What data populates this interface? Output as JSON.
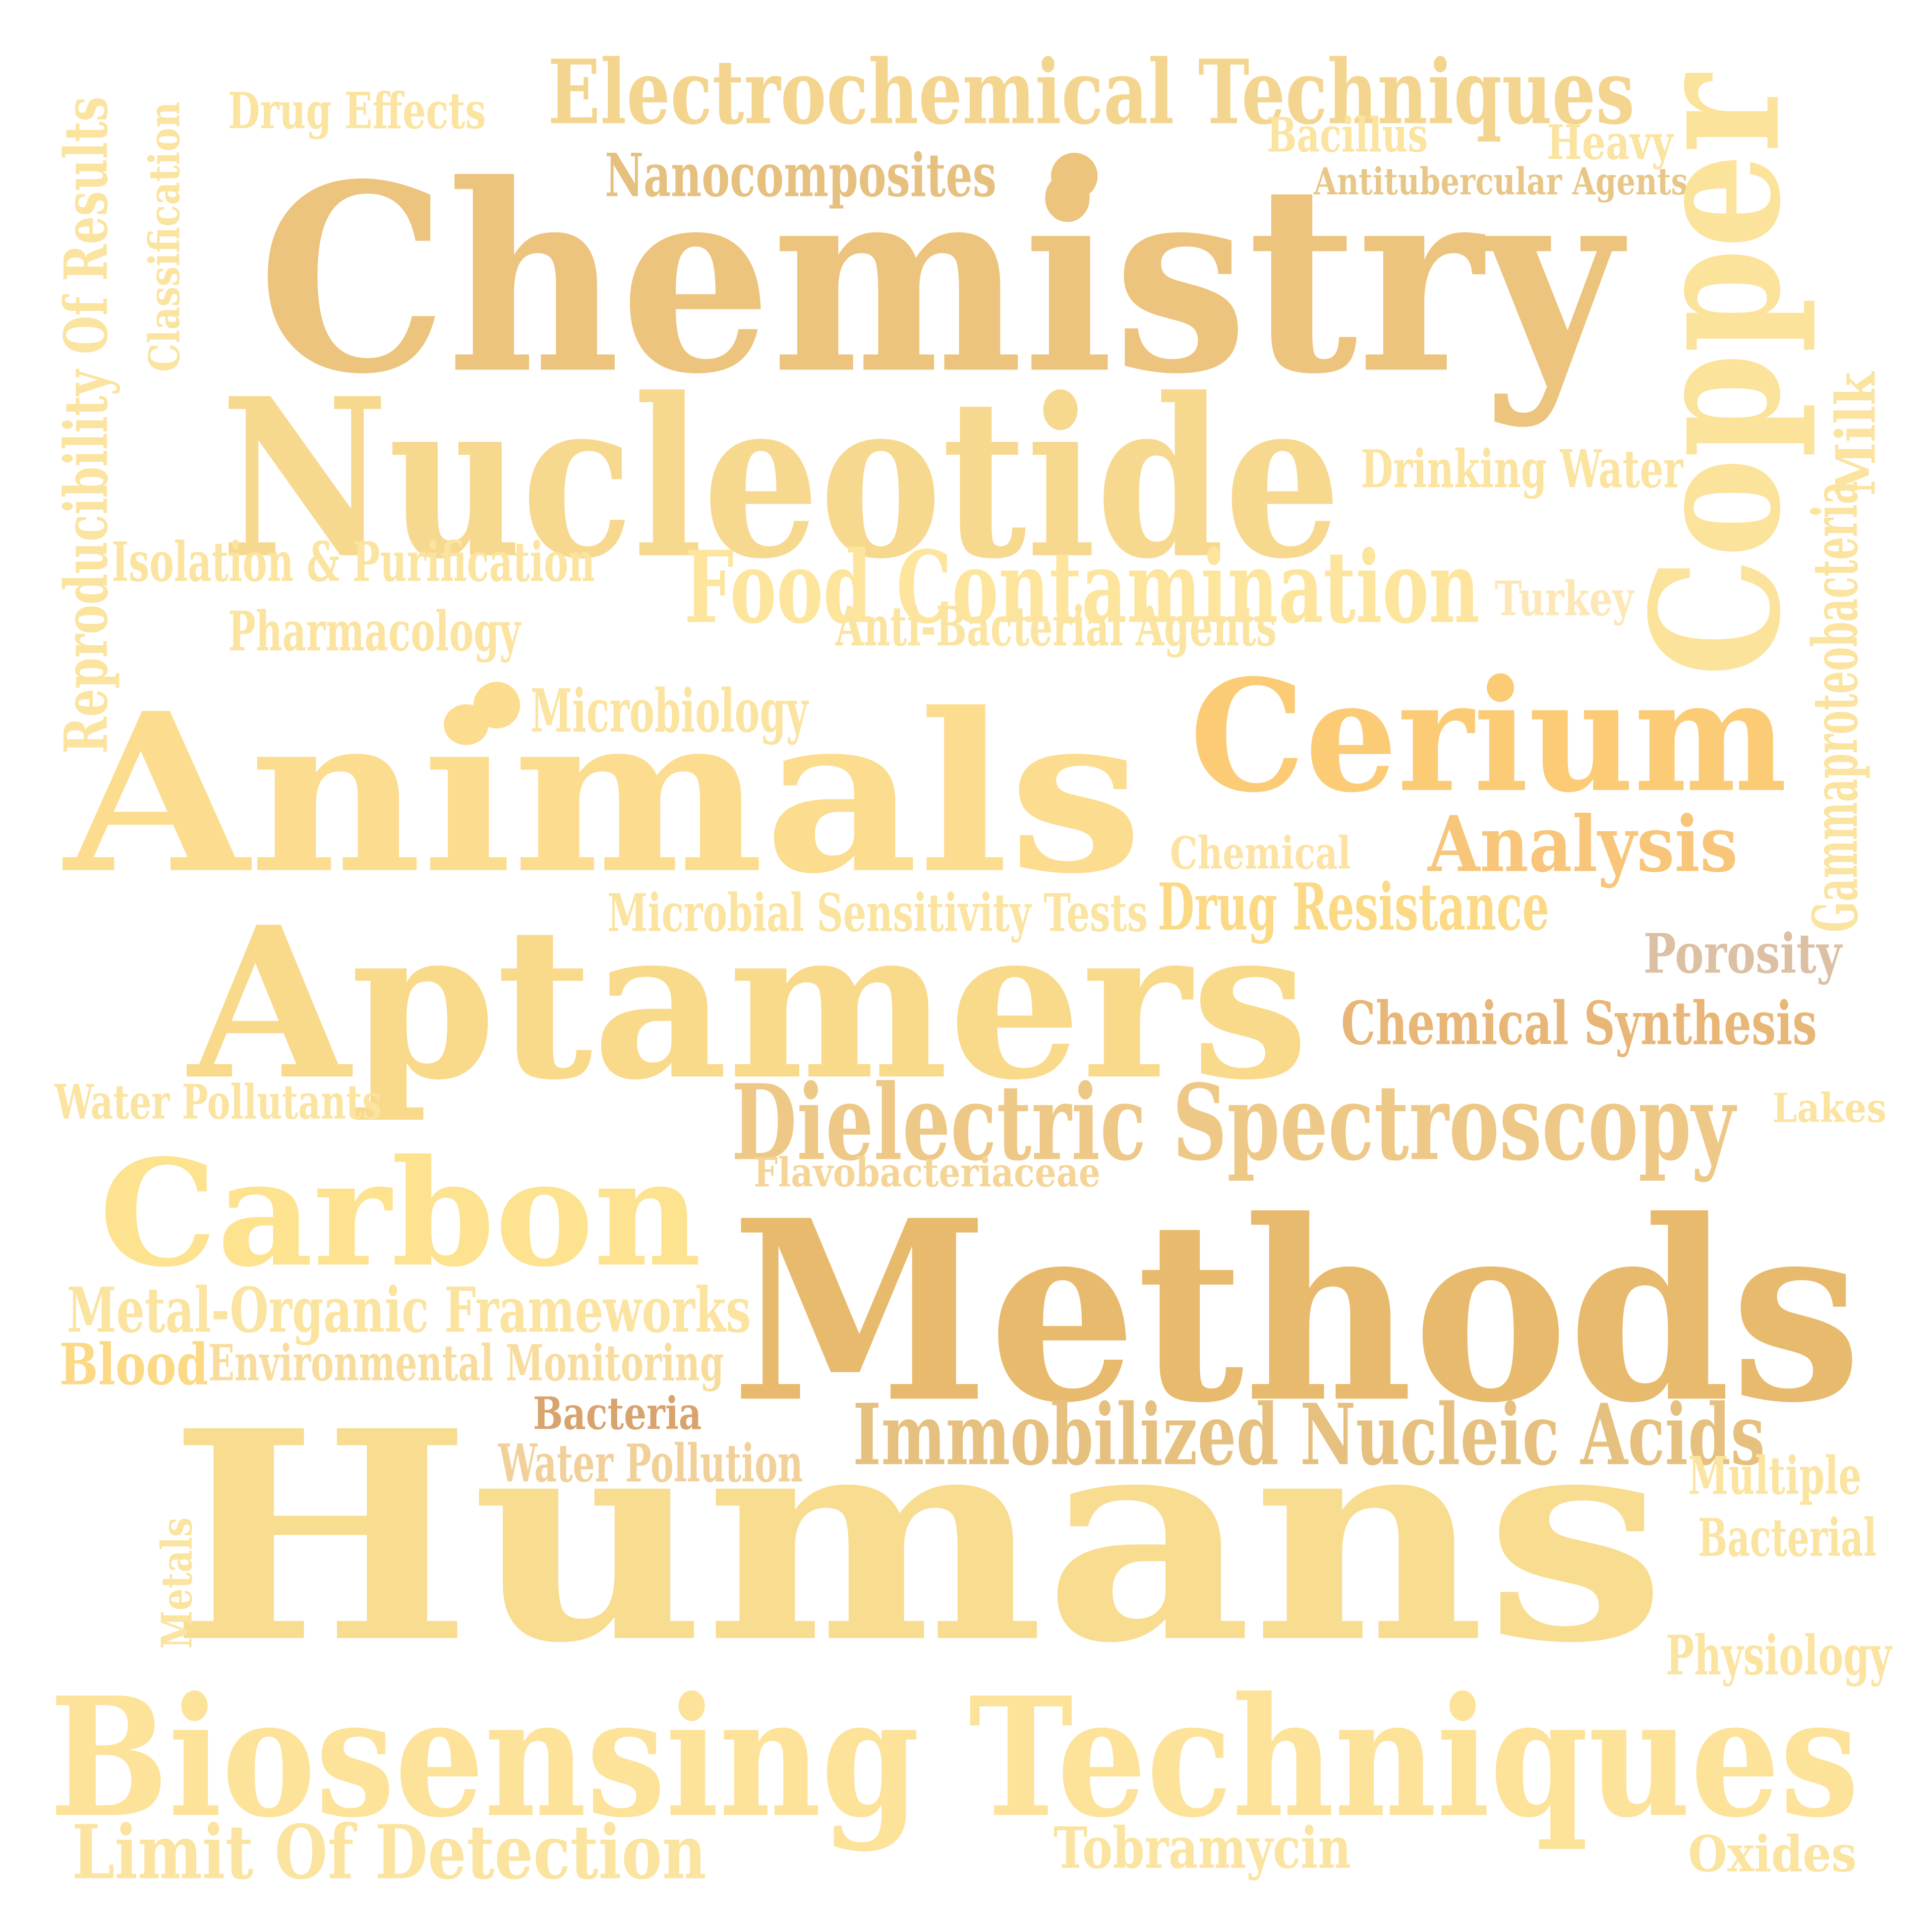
{
  "words": [
    {
      "text": "Electrochemical Techniques",
      "color": "#f4d58f"
    },
    {
      "text": "Drug Effects",
      "color": "#fbe3a0"
    },
    {
      "text": "Bacillus",
      "color": "#fbe3a0"
    },
    {
      "text": "Heavy",
      "color": "#fbe3a0"
    },
    {
      "text": "Nanocomposites",
      "color": "#e6c07f"
    },
    {
      "text": "Antitubercular Agents",
      "color": "#e8c688"
    },
    {
      "text": "Chemistry",
      "color": "#ecc47d"
    },
    {
      "text": "Copper",
      "color": "#fce39c"
    },
    {
      "text": "Reproducibility Of Results",
      "color": "#fbe3a0"
    },
    {
      "text": "Classification",
      "color": "#fbe3a0"
    },
    {
      "text": "Nucleotide",
      "color": "#f7d88f"
    },
    {
      "text": "Milk",
      "color": "#fbe3a0"
    },
    {
      "text": "Drinking Water",
      "color": "#fbe3a0"
    },
    {
      "text": "Isolation & Purification",
      "color": "#fbe3a0"
    },
    {
      "text": "Food Contamination",
      "color": "#fde59e"
    },
    {
      "text": "Turkey",
      "color": "#fde7b6"
    },
    {
      "text": "Pharmacology",
      "color": "#fbe3a0"
    },
    {
      "text": "Anti-Bacterial Agents",
      "color": "#fbe3a0"
    },
    {
      "text": "Gammaproteobacteria",
      "color": "#fbe3a0"
    },
    {
      "text": "Microbiology",
      "color": "#fbe3a0"
    },
    {
      "text": "Animals",
      "color": "#fcdc8e"
    },
    {
      "text": "Cerium",
      "color": "#fbcb75"
    },
    {
      "text": "Chemical",
      "color": "#fde3a3"
    },
    {
      "text": "Analysis",
      "color": "#f8c67a"
    },
    {
      "text": "Microbial Sensitivity Tests",
      "color": "#fbe3a0"
    },
    {
      "text": "Drug Resistance",
      "color": "#fbd985"
    },
    {
      "text": "Porosity",
      "color": "#dcc0a4"
    },
    {
      "text": "Aptamers",
      "color": "#f9d98a"
    },
    {
      "text": "Chemical Synthesis",
      "color": "#e8b676"
    },
    {
      "text": "Water Pollutants",
      "color": "#fbe3a0"
    },
    {
      "text": "Dielectric Spectroscopy",
      "color": "#eec887"
    },
    {
      "text": "Lakes",
      "color": "#fbe3a0"
    },
    {
      "text": "Flavobacteriaceae",
      "color": "#f5d597"
    },
    {
      "text": "Carbon",
      "color": "#fde28f"
    },
    {
      "text": "Methods",
      "color": "#e8ba6d"
    },
    {
      "text": "Metal-Organic Frameworks",
      "color": "#fbe3a0"
    },
    {
      "text": "Blood",
      "color": "#fbd985"
    },
    {
      "text": "Environmental Monitoring",
      "color": "#f8dc9e"
    },
    {
      "text": "Bacteria",
      "color": "#d9a36e"
    },
    {
      "text": "Immobilized Nucleic Acids",
      "color": "#e6c07f"
    },
    {
      "text": "Water Pollution",
      "color": "#f1d09a"
    },
    {
      "text": "Humans",
      "color": "#f8dc90"
    },
    {
      "text": "Multiple",
      "color": "#fbe3a0"
    },
    {
      "text": "Bacterial",
      "color": "#fbe3a0"
    },
    {
      "text": "Metals",
      "color": "#fbe3a0"
    },
    {
      "text": "Physiology",
      "color": "#fbe3a0"
    },
    {
      "text": "Biosensing Techniques",
      "color": "#fde29a"
    },
    {
      "text": "Limit Of Detection",
      "color": "#fbe3a0"
    },
    {
      "text": "Tobramycin",
      "color": "#fbe3a0"
    },
    {
      "text": "Oxides",
      "color": "#fbe3a0"
    }
  ]
}
